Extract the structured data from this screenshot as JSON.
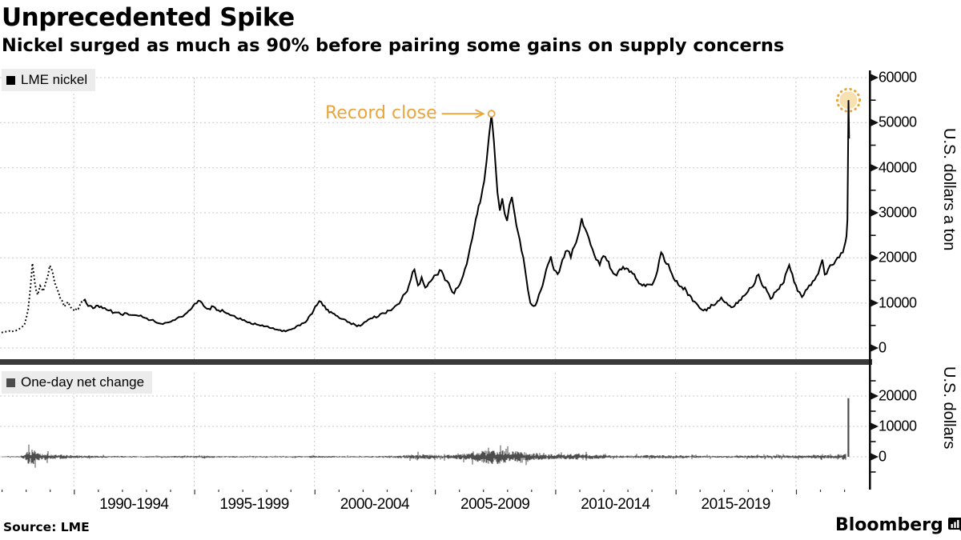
{
  "header": {
    "title": "Unprecedented Spike",
    "subtitle": "Nickel surged as much as 90% before pairing some gains on supply concerns"
  },
  "footer": {
    "source": "Source: LME",
    "brand": "Bloomberg"
  },
  "colors": {
    "price_line": "#000000",
    "change_line": "#4d4d4d",
    "accent": "#E9A53C",
    "halo_fill": "#F8E1B0",
    "grid": "#c9c9c9",
    "axis": "#111111",
    "separator": "#3a3a3a",
    "legend_bg": "#ececec"
  },
  "chart_data": [
    {
      "type": "line",
      "title": "LME nickel",
      "ylabel": "U.S. dollars a ton",
      "x_axis": {
        "range": [
          1987.0,
          2022.3
        ],
        "gridline_years": [
          1990,
          1995,
          2000,
          2005,
          2010,
          2015,
          2020
        ],
        "labels": [
          "1990-1994",
          "1995-1999",
          "2000-2004",
          "2005-2009",
          "2010-2014",
          "2015-2019"
        ],
        "label_center_years": [
          1992.5,
          1997.5,
          2002.5,
          2007.5,
          2012.5,
          2017.5
        ]
      },
      "y_axis": {
        "range": [
          0,
          60000
        ],
        "major_step": 10000,
        "minor_step": 5000,
        "grid": true
      },
      "style": {
        "dotted_until": 1990.5
      },
      "annotation": {
        "label": "Record close",
        "point": [
          2007.35,
          51800
        ]
      },
      "last_close": {
        "point": [
          2022.185,
          55000
        ]
      },
      "series": [
        {
          "name": "LME nickel",
          "points": [
            [
              1987.0,
              3400
            ],
            [
              1987.25,
              3600
            ],
            [
              1987.5,
              3800
            ],
            [
              1987.75,
              4300
            ],
            [
              1987.95,
              5200
            ],
            [
              1988.1,
              8500
            ],
            [
              1988.2,
              13500
            ],
            [
              1988.28,
              18800
            ],
            [
              1988.38,
              14500
            ],
            [
              1988.5,
              11800
            ],
            [
              1988.6,
              13800
            ],
            [
              1988.72,
              12600
            ],
            [
              1988.85,
              14800
            ],
            [
              1989.0,
              18300
            ],
            [
              1989.12,
              16800
            ],
            [
              1989.3,
              13200
            ],
            [
              1989.45,
              10800
            ],
            [
              1989.6,
              9200
            ],
            [
              1989.75,
              10200
            ],
            [
              1989.9,
              8800
            ],
            [
              1990.05,
              8200
            ],
            [
              1990.25,
              9500
            ],
            [
              1990.45,
              10900
            ],
            [
              1990.6,
              9300
            ],
            [
              1990.8,
              8800
            ],
            [
              1991.0,
              9400
            ],
            [
              1991.2,
              8800
            ],
            [
              1991.45,
              8300
            ],
            [
              1991.7,
              7900
            ],
            [
              1991.95,
              7500
            ],
            [
              1992.2,
              7700
            ],
            [
              1992.45,
              7300
            ],
            [
              1992.7,
              7100
            ],
            [
              1992.95,
              6700
            ],
            [
              1993.2,
              6200
            ],
            [
              1993.45,
              5600
            ],
            [
              1993.7,
              5300
            ],
            [
              1993.95,
              5700
            ],
            [
              1994.2,
              6200
            ],
            [
              1994.45,
              6900
            ],
            [
              1994.7,
              7800
            ],
            [
              1994.9,
              8800
            ],
            [
              1995.1,
              9900
            ],
            [
              1995.25,
              10400
            ],
            [
              1995.4,
              9300
            ],
            [
              1995.6,
              8700
            ],
            [
              1995.8,
              9200
            ],
            [
              1996.0,
              8400
            ],
            [
              1996.25,
              8000
            ],
            [
              1996.5,
              7300
            ],
            [
              1996.75,
              6700
            ],
            [
              1997.0,
              6200
            ],
            [
              1997.3,
              5700
            ],
            [
              1997.6,
              5200
            ],
            [
              1997.9,
              4800
            ],
            [
              1998.2,
              4400
            ],
            [
              1998.5,
              4000
            ],
            [
              1998.8,
              3700
            ],
            [
              1999.1,
              4300
            ],
            [
              1999.4,
              5000
            ],
            [
              1999.7,
              6200
            ],
            [
              1999.9,
              7600
            ],
            [
              2000.1,
              9500
            ],
            [
              2000.2,
              10400
            ],
            [
              2000.35,
              9400
            ],
            [
              2000.55,
              8500
            ],
            [
              2000.75,
              7700
            ],
            [
              2000.95,
              7100
            ],
            [
              2001.2,
              6400
            ],
            [
              2001.45,
              5700
            ],
            [
              2001.7,
              5100
            ],
            [
              2001.9,
              4900
            ],
            [
              2002.15,
              5900
            ],
            [
              2002.4,
              6600
            ],
            [
              2002.65,
              7000
            ],
            [
              2002.9,
              7700
            ],
            [
              2003.1,
              8300
            ],
            [
              2003.35,
              9300
            ],
            [
              2003.6,
              10600
            ],
            [
              2003.85,
              12600
            ],
            [
              2004.0,
              15200
            ],
            [
              2004.15,
              17400
            ],
            [
              2004.3,
              13900
            ],
            [
              2004.45,
              15700
            ],
            [
              2004.6,
              13400
            ],
            [
              2004.75,
              14500
            ],
            [
              2004.9,
              15300
            ],
            [
              2005.05,
              16200
            ],
            [
              2005.2,
              17300
            ],
            [
              2005.35,
              16300
            ],
            [
              2005.5,
              14900
            ],
            [
              2005.65,
              13300
            ],
            [
              2005.8,
              12100
            ],
            [
              2005.95,
              13400
            ],
            [
              2006.1,
              15000
            ],
            [
              2006.25,
              17600
            ],
            [
              2006.4,
              20600
            ],
            [
              2006.55,
              24200
            ],
            [
              2006.7,
              28600
            ],
            [
              2006.82,
              31600
            ],
            [
              2006.93,
              33600
            ],
            [
              2007.05,
              37000
            ],
            [
              2007.15,
              41500
            ],
            [
              2007.25,
              47000
            ],
            [
              2007.35,
              51800
            ],
            [
              2007.45,
              46000
            ],
            [
              2007.52,
              40500
            ],
            [
              2007.6,
              34500
            ],
            [
              2007.7,
              30500
            ],
            [
              2007.8,
              33200
            ],
            [
              2007.9,
              29800
            ],
            [
              2008.0,
              28200
            ],
            [
              2008.1,
              31800
            ],
            [
              2008.2,
              33500
            ],
            [
              2008.32,
              29600
            ],
            [
              2008.45,
              25800
            ],
            [
              2008.6,
              21600
            ],
            [
              2008.75,
              17400
            ],
            [
              2008.87,
              12800
            ],
            [
              2008.97,
              10000
            ],
            [
              2009.1,
              9300
            ],
            [
              2009.25,
              10400
            ],
            [
              2009.4,
              12800
            ],
            [
              2009.55,
              15600
            ],
            [
              2009.7,
              18600
            ],
            [
              2009.82,
              20300
            ],
            [
              2009.95,
              17300
            ],
            [
              2010.1,
              16400
            ],
            [
              2010.3,
              19600
            ],
            [
              2010.5,
              21600
            ],
            [
              2010.65,
              20100
            ],
            [
              2010.8,
              22600
            ],
            [
              2011.0,
              26000
            ],
            [
              2011.1,
              28800
            ],
            [
              2011.25,
              26400
            ],
            [
              2011.4,
              24300
            ],
            [
              2011.55,
              21900
            ],
            [
              2011.7,
              19600
            ],
            [
              2011.85,
              18400
            ],
            [
              2012.0,
              20400
            ],
            [
              2012.15,
              19400
            ],
            [
              2012.35,
              17200
            ],
            [
              2012.55,
              16100
            ],
            [
              2012.75,
              17400
            ],
            [
              2012.95,
              17700
            ],
            [
              2013.15,
              17000
            ],
            [
              2013.35,
              15400
            ],
            [
              2013.55,
              14200
            ],
            [
              2013.75,
              13700
            ],
            [
              2013.95,
              14100
            ],
            [
              2014.1,
              14800
            ],
            [
              2014.25,
              17200
            ],
            [
              2014.4,
              21200
            ],
            [
              2014.55,
              19200
            ],
            [
              2014.7,
              18600
            ],
            [
              2014.85,
              16400
            ],
            [
              2015.05,
              14900
            ],
            [
              2015.25,
              13600
            ],
            [
              2015.45,
              12700
            ],
            [
              2015.65,
              11300
            ],
            [
              2015.85,
              10000
            ],
            [
              2016.0,
              8900
            ],
            [
              2016.15,
              8300
            ],
            [
              2016.35,
              8900
            ],
            [
              2016.55,
              9500
            ],
            [
              2016.75,
              10400
            ],
            [
              2016.9,
              11200
            ],
            [
              2017.05,
              10100
            ],
            [
              2017.25,
              9400
            ],
            [
              2017.45,
              9300
            ],
            [
              2017.65,
              10600
            ],
            [
              2017.85,
              11600
            ],
            [
              2018.0,
              12500
            ],
            [
              2018.15,
              13400
            ],
            [
              2018.3,
              14500
            ],
            [
              2018.45,
              16300
            ],
            [
              2018.6,
              13900
            ],
            [
              2018.8,
              12600
            ],
            [
              2018.95,
              10900
            ],
            [
              2019.1,
              12300
            ],
            [
              2019.3,
              13100
            ],
            [
              2019.5,
              14600
            ],
            [
              2019.62,
              17000
            ],
            [
              2019.72,
              18400
            ],
            [
              2019.85,
              16400
            ],
            [
              2020.0,
              13900
            ],
            [
              2020.15,
              12400
            ],
            [
              2020.25,
              11300
            ],
            [
              2020.4,
              12800
            ],
            [
              2020.55,
              13900
            ],
            [
              2020.7,
              14800
            ],
            [
              2020.85,
              15900
            ],
            [
              2021.0,
              17900
            ],
            [
              2021.1,
              19600
            ],
            [
              2021.2,
              16300
            ],
            [
              2021.35,
              17600
            ],
            [
              2021.5,
              18400
            ],
            [
              2021.65,
              19400
            ],
            [
              2021.8,
              20100
            ],
            [
              2021.95,
              21200
            ],
            [
              2022.0,
              22300
            ],
            [
              2022.06,
              23600
            ],
            [
              2022.1,
              24800
            ],
            [
              2022.14,
              28500
            ],
            [
              2022.165,
              42000
            ],
            [
              2022.185,
              55000
            ],
            [
              2022.21,
              46500
            ]
          ]
        }
      ]
    },
    {
      "type": "line",
      "title": "One-day net change",
      "ylabel": "U.S. dollars",
      "y_axis": {
        "range": [
          -9000,
          27000
        ],
        "major_step": 10000,
        "minor_step": 5000,
        "labeled_ticks": [
          0,
          10000,
          20000
        ],
        "grid": true
      },
      "envelope": [
        [
          1987.0,
          150
        ],
        [
          1987.7,
          200
        ],
        [
          1987.95,
          600
        ],
        [
          1988.1,
          2400
        ],
        [
          1988.3,
          2600
        ],
        [
          1988.5,
          1500
        ],
        [
          1988.8,
          1200
        ],
        [
          1989.1,
          900
        ],
        [
          1989.5,
          700
        ],
        [
          1990.0,
          500
        ],
        [
          1990.5,
          450
        ],
        [
          1991.0,
          380
        ],
        [
          1992.0,
          280
        ],
        [
          1993.0,
          220
        ],
        [
          1994.0,
          250
        ],
        [
          1994.8,
          380
        ],
        [
          1995.3,
          420
        ],
        [
          1996.0,
          280
        ],
        [
          1997.0,
          220
        ],
        [
          1998.0,
          200
        ],
        [
          1999.0,
          220
        ],
        [
          2000.2,
          380
        ],
        [
          2001.0,
          260
        ],
        [
          2002.0,
          230
        ],
        [
          2003.0,
          330
        ],
        [
          2003.8,
          600
        ],
        [
          2004.3,
          900
        ],
        [
          2005.0,
          650
        ],
        [
          2005.8,
          700
        ],
        [
          2006.3,
          1100
        ],
        [
          2006.8,
          1700
        ],
        [
          2007.2,
          2500
        ],
        [
          2007.6,
          2300
        ],
        [
          2008.0,
          2000
        ],
        [
          2008.6,
          1800
        ],
        [
          2009.0,
          1200
        ],
        [
          2009.6,
          900
        ],
        [
          2010.2,
          800
        ],
        [
          2011.0,
          1000
        ],
        [
          2011.6,
          750
        ],
        [
          2012.2,
          550
        ],
        [
          2013.0,
          450
        ],
        [
          2014.0,
          600
        ],
        [
          2014.6,
          550
        ],
        [
          2015.2,
          450
        ],
        [
          2016.0,
          400
        ],
        [
          2017.0,
          320
        ],
        [
          2018.0,
          430
        ],
        [
          2019.0,
          460
        ],
        [
          2019.7,
          550
        ],
        [
          2020.3,
          520
        ],
        [
          2021.0,
          600
        ],
        [
          2021.5,
          560
        ],
        [
          2022.0,
          850
        ],
        [
          2022.1,
          1300
        ],
        [
          2022.14,
          1800
        ]
      ],
      "spike": {
        "point": [
          2022.18,
          19300
        ]
      }
    }
  ]
}
